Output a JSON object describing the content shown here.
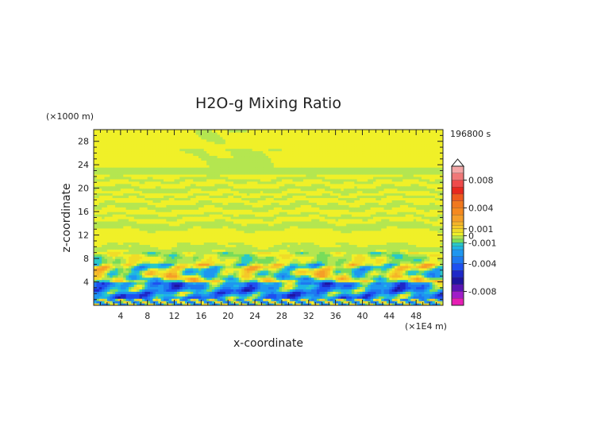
{
  "chart_data": {
    "type": "heatmap",
    "title": "H2O-g Mixing Ratio",
    "xlabel": "x-coordinate",
    "ylabel": "z-coordinate",
    "x_unit": "(×1E4 m)",
    "y_unit": "(×1000 m)",
    "time_label": "196800 s",
    "xlim": [
      0,
      52
    ],
    "ylim": [
      0,
      30
    ],
    "x_ticks": [
      4,
      8,
      12,
      16,
      20,
      24,
      28,
      32,
      36,
      40,
      44,
      48
    ],
    "y_ticks": [
      4,
      8,
      12,
      16,
      20,
      24,
      28
    ],
    "colorbar": {
      "ticks": [
        "0.008",
        "0.004",
        "0.001",
        "0",
        "-0.001",
        "-0.004",
        "-0.008"
      ],
      "tick_values": [
        0.008,
        0.004,
        0.001,
        0,
        -0.001,
        -0.004,
        -0.008
      ],
      "range": [
        -0.01,
        0.01
      ],
      "extend_top": true,
      "levels": [
        {
          "min": 0.009,
          "max": 0.01,
          "color": "#f4a6a6"
        },
        {
          "min": 0.008,
          "max": 0.009,
          "color": "#f07878"
        },
        {
          "min": 0.007,
          "max": 0.008,
          "color": "#ee4b4b"
        },
        {
          "min": 0.006,
          "max": 0.007,
          "color": "#e8281e"
        },
        {
          "min": 0.005,
          "max": 0.006,
          "color": "#ef5a1e"
        },
        {
          "min": 0.004,
          "max": 0.005,
          "color": "#f0781e"
        },
        {
          "min": 0.003,
          "max": 0.004,
          "color": "#f5891e"
        },
        {
          "min": 0.002,
          "max": 0.003,
          "color": "#f59e28"
        },
        {
          "min": 0.0015,
          "max": 0.002,
          "color": "#f5b428"
        },
        {
          "min": 0.001,
          "max": 0.0015,
          "color": "#f5c828"
        },
        {
          "min": 0.0005,
          "max": 0.001,
          "color": "#f0dc28"
        },
        {
          "min": 0.0,
          "max": 0.0005,
          "color": "#f0f028"
        },
        {
          "min": -0.0005,
          "max": 0.0,
          "color": "#b4e650"
        },
        {
          "min": -0.001,
          "max": -0.0005,
          "color": "#78dc5a"
        },
        {
          "min": -0.0015,
          "max": -0.001,
          "color": "#28c8c8"
        },
        {
          "min": -0.002,
          "max": -0.0015,
          "color": "#1eb4e6"
        },
        {
          "min": -0.003,
          "max": -0.002,
          "color": "#1e96f0"
        },
        {
          "min": -0.004,
          "max": -0.003,
          "color": "#1e78f0"
        },
        {
          "min": -0.005,
          "max": -0.004,
          "color": "#1e50f0"
        },
        {
          "min": -0.006,
          "max": -0.005,
          "color": "#1e28c8"
        },
        {
          "min": -0.007,
          "max": -0.006,
          "color": "#1e14a0"
        },
        {
          "min": -0.008,
          "max": -0.007,
          "color": "#5a14b4"
        },
        {
          "min": -0.009,
          "max": -0.008,
          "color": "#a01ec8"
        },
        {
          "min": -0.01,
          "max": -0.009,
          "color": "#e61eb4"
        }
      ]
    },
    "field_description_bands": [
      {
        "z_range": [
          22.5,
          30
        ],
        "dominant": 0.0002,
        "note": "yellow with green plumes near x 12-28"
      },
      {
        "z_range": [
          9,
          22.5
        ],
        "dominant": 0.0002,
        "note": "alternating yellow and green horizontal layers"
      },
      {
        "z_range": [
          4,
          9
        ],
        "dominant": 0.0,
        "note": "wavy green/cyan/yellow/orange structures"
      },
      {
        "z_range": [
          0,
          4
        ],
        "dominant": -0.002,
        "note": "blue/cyan with orange pockets near surface"
      }
    ]
  }
}
